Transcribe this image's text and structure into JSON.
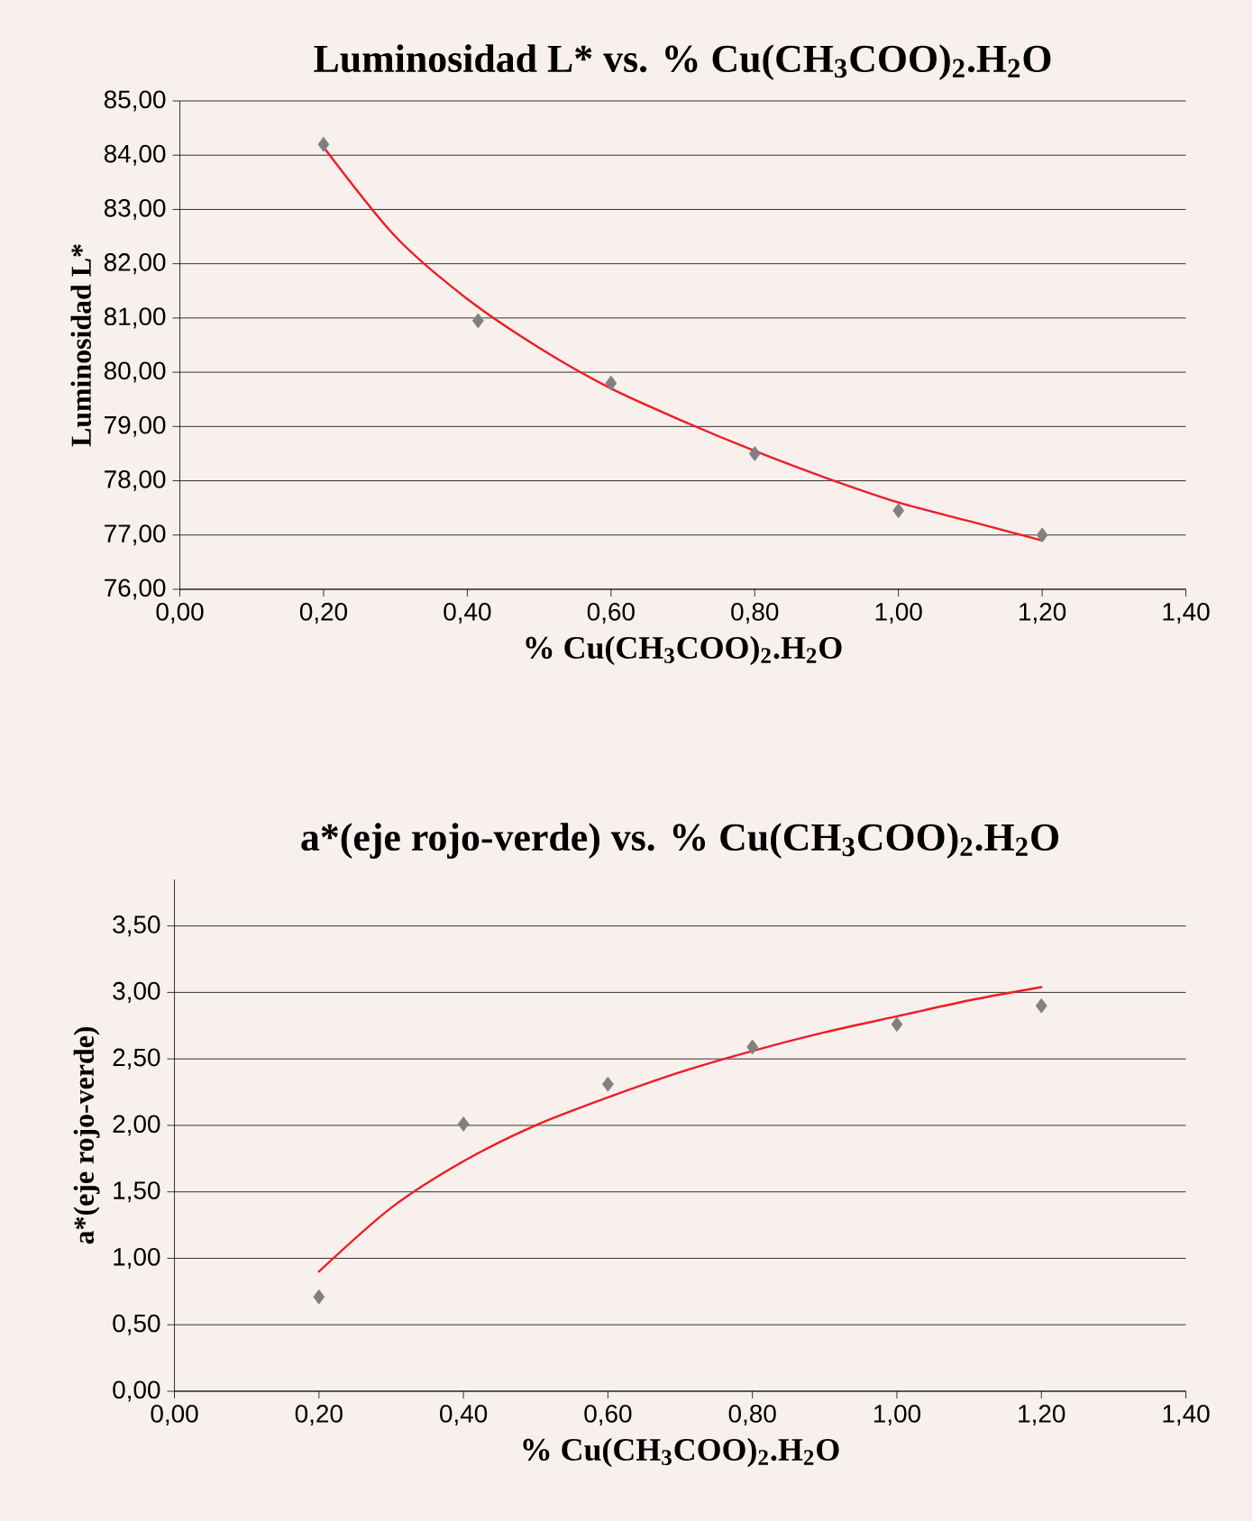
{
  "chart_data": [
    {
      "type": "scatter",
      "title": "Luminosidad L* vs. % Cu(CH$_{3}$COO)$_{2}$.H$_{2}$O",
      "xlabel": "% Cu(CH$_{3}$COO)$_{2}$.H$_{2}$O",
      "ylabel": "Luminosidad L*",
      "grid": "y",
      "xlim": [
        0,
        1.4
      ],
      "ylim": [
        76,
        85
      ],
      "xticks": [
        {
          "value": 0,
          "label": "0,00"
        },
        {
          "value": 0.2,
          "label": "0,20"
        },
        {
          "value": 0.4,
          "label": "0,40"
        },
        {
          "value": 0.6,
          "label": "0,60"
        },
        {
          "value": 0.8,
          "label": "0,80"
        },
        {
          "value": 1.0,
          "label": "1,00"
        },
        {
          "value": 1.2,
          "label": "1,20"
        },
        {
          "value": 1.4,
          "label": "1,40"
        }
      ],
      "yticks": [
        {
          "value": 76,
          "label": "76,00"
        },
        {
          "value": 77,
          "label": "77,00"
        },
        {
          "value": 78,
          "label": "78,00"
        },
        {
          "value": 79,
          "label": "79,00"
        },
        {
          "value": 80,
          "label": "80,00"
        },
        {
          "value": 81,
          "label": "81,00"
        },
        {
          "value": 82,
          "label": "82,00"
        },
        {
          "value": 83,
          "label": "83,00"
        },
        {
          "value": 84,
          "label": "84,00"
        },
        {
          "value": 85,
          "label": "85,00"
        }
      ],
      "series": [
        {
          "marker": "diamond",
          "color": "#808080",
          "x": [
            0.2,
            0.415,
            0.6,
            0.8,
            1.0,
            1.2
          ],
          "values": [
            84.2,
            80.95,
            79.8,
            78.5,
            77.45,
            77.0
          ]
        },
        {
          "type": "line",
          "marker": "none",
          "line_style": "solid",
          "color": "#ee1c25",
          "x": [
            0.2,
            0.3,
            0.4,
            0.5,
            0.6,
            0.7,
            0.8,
            0.9,
            1.0,
            1.1,
            1.2
          ],
          "values": [
            84.15,
            82.5,
            81.35,
            80.45,
            79.7,
            79.1,
            78.55,
            78.05,
            77.6,
            77.25,
            76.9
          ]
        }
      ]
    },
    {
      "type": "scatter",
      "title": "a*(eje rojo-verde) vs. % Cu(CH$_{3}$COO)$_{2}$.H$_{2}$O",
      "xlabel": "% Cu(CH$_{3}$COO)$_{2}$.H$_{2}$O",
      "ylabel": "a*(eje rojo-verde)",
      "grid": "y",
      "xlim": [
        0,
        1.4
      ],
      "ylim": [
        0,
        3.85
      ],
      "xticks": [
        {
          "value": 0,
          "label": "0,00"
        },
        {
          "value": 0.2,
          "label": "0,20"
        },
        {
          "value": 0.4,
          "label": "0,40"
        },
        {
          "value": 0.6,
          "label": "0,60"
        },
        {
          "value": 0.8,
          "label": "0,80"
        },
        {
          "value": 1.0,
          "label": "1,00"
        },
        {
          "value": 1.2,
          "label": "1,20"
        },
        {
          "value": 1.4,
          "label": "1,40"
        }
      ],
      "yticks": [
        {
          "value": 0,
          "label": "0,00"
        },
        {
          "value": 0.5,
          "label": "0,50"
        },
        {
          "value": 1.0,
          "label": "1,00"
        },
        {
          "value": 1.5,
          "label": "1,50"
        },
        {
          "value": 2.0,
          "label": "2,00"
        },
        {
          "value": 2.5,
          "label": "2,50"
        },
        {
          "value": 3.0,
          "label": "3,00"
        },
        {
          "value": 3.5,
          "label": "3,50"
        }
      ],
      "series": [
        {
          "marker": "diamond",
          "color": "#808080",
          "x": [
            0.2,
            0.4,
            0.6,
            0.8,
            1.0,
            1.2
          ],
          "values": [
            0.71,
            2.01,
            2.31,
            2.59,
            2.76,
            2.9
          ]
        },
        {
          "type": "line",
          "marker": "none",
          "line_style": "solid",
          "color": "#ee1c25",
          "x": [
            0.2,
            0.3,
            0.4,
            0.5,
            0.6,
            0.7,
            0.8,
            0.9,
            1.0,
            1.1,
            1.2
          ],
          "values": [
            0.9,
            1.38,
            1.73,
            2.0,
            2.21,
            2.4,
            2.56,
            2.7,
            2.82,
            2.94,
            3.04
          ]
        }
      ]
    }
  ]
}
